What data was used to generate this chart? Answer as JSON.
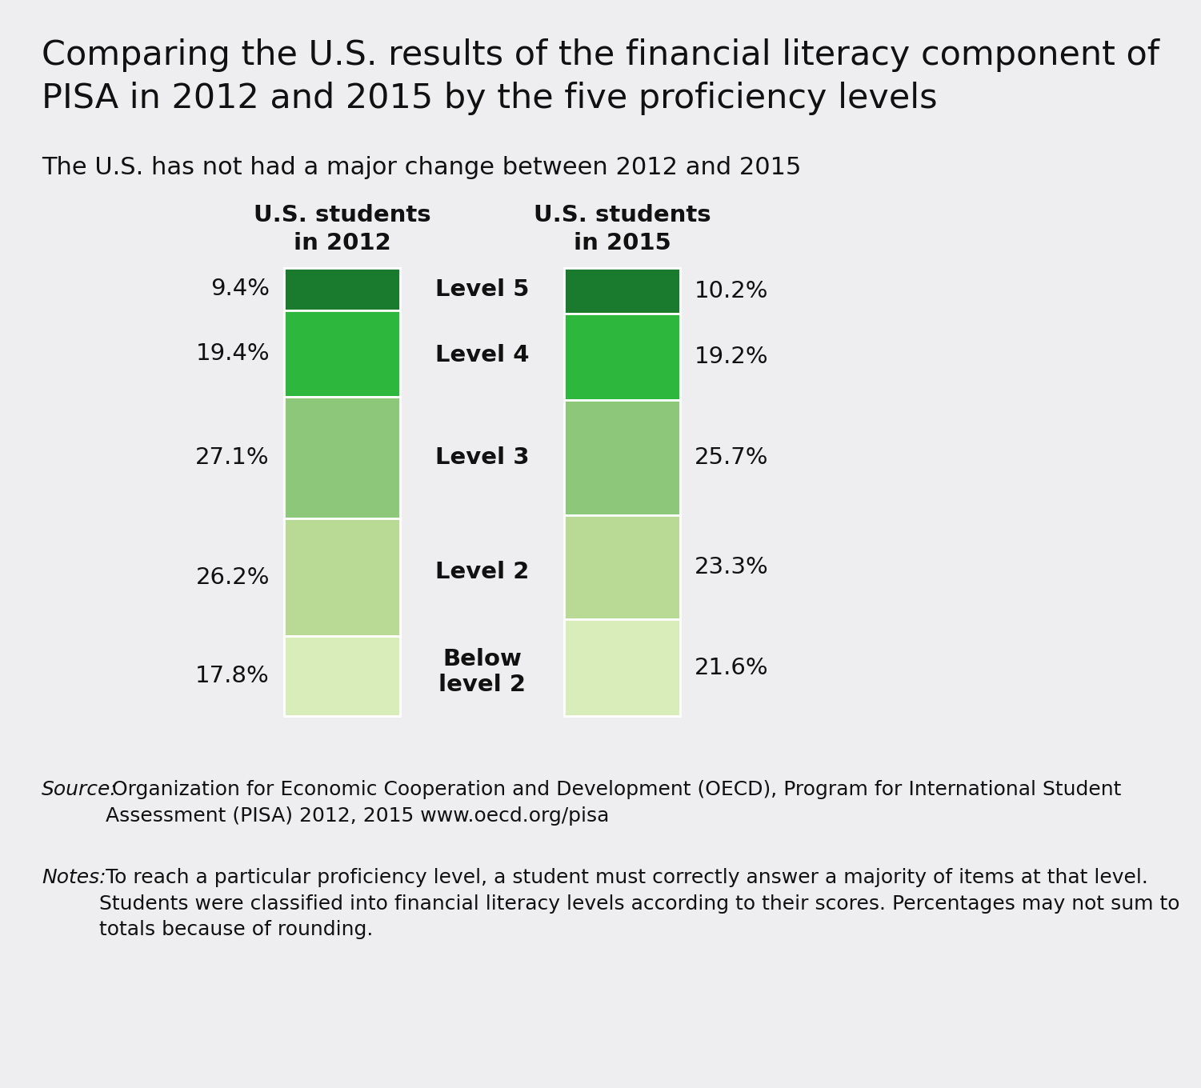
{
  "title": "Comparing the U.S. results of the financial literacy component of\nPISA in 2012 and 2015 by the five proficiency levels",
  "subtitle": "The U.S. has not had a major change between 2012 and 2015",
  "col1_label": "U.S. students\nin 2012",
  "col2_label": "U.S. students\nin 2015",
  "levels": [
    "Level 5",
    "Level 4",
    "Level 3",
    "Level 2",
    "Below\nlevel 2"
  ],
  "values_2012": [
    9.4,
    19.4,
    27.1,
    26.2,
    17.8
  ],
  "values_2015": [
    10.2,
    19.2,
    25.7,
    23.3,
    21.6
  ],
  "labels_2012": [
    "9.4%",
    "19.4%",
    "27.1%",
    "26.2%",
    "17.8%"
  ],
  "labels_2015": [
    "10.2%",
    "19.2%",
    "25.7%",
    "23.3%",
    "21.6%"
  ],
  "colors": [
    "#1a7a2e",
    "#2db83d",
    "#8dc87a",
    "#b8da94",
    "#d9edba"
  ],
  "background_color": "#eeeef0",
  "source_word": "Source:",
  "source_rest": " Organization for Economic Cooperation and Development (OECD), Program for International Student\nAssessment (PISA) 2012, 2015 www.oecd.org/pisa",
  "notes_word": "Notes:",
  "notes_rest": " To reach a particular proficiency level, a student must correctly answer a majority of items at that level.\nStudents were classified into financial literacy levels according to their scores. Percentages may not sum to\ntotals because of rounding."
}
